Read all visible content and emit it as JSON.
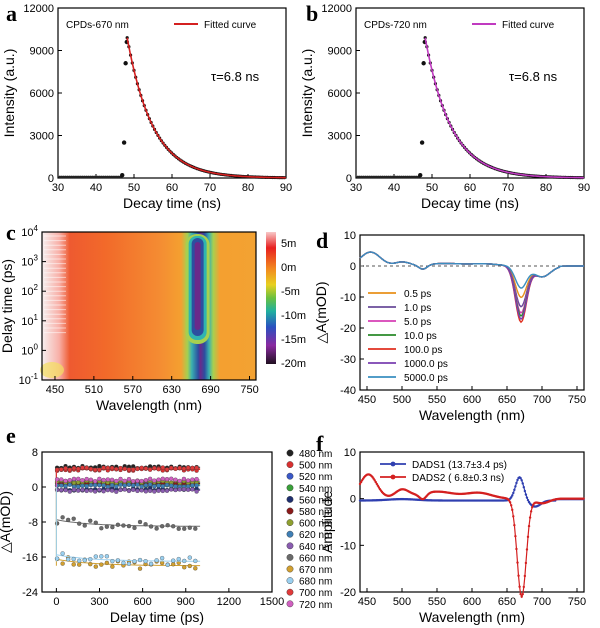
{
  "chart_data": [
    {
      "panel": "a",
      "type": "scatter",
      "annotation": "CPDs-670 nm",
      "tau_label": "τ=6.8 ns",
      "legend": [
        "Fitted curve"
      ],
      "xlabel": "Decay time (ns)",
      "ylabel": "Intensity (a.u.)",
      "xlim": [
        30,
        90
      ],
      "ylim": [
        0,
        12000
      ],
      "xticks": [
        30,
        40,
        50,
        60,
        70,
        80,
        90
      ],
      "yticks": [
        0,
        3000,
        6000,
        9000,
        12000
      ],
      "fit_color": "#d42020",
      "tau": 6.8,
      "t0": 48.2,
      "peak": 9900,
      "rise_points": [
        [
          46.9,
          200
        ],
        [
          47.4,
          2500
        ],
        [
          47.8,
          8100
        ],
        [
          48.1,
          9600
        ]
      ]
    },
    {
      "panel": "b",
      "type": "scatter",
      "annotation": "CPDs-720 nm",
      "tau_label": "τ=6.8 ns",
      "legend": [
        "Fitted curve"
      ],
      "xlabel": "Decay time (ns)",
      "ylabel": "Intensity (a.u.)",
      "xlim": [
        30,
        90
      ],
      "ylim": [
        0,
        12000
      ],
      "xticks": [
        30,
        40,
        50,
        60,
        70,
        80,
        90
      ],
      "yticks": [
        0,
        3000,
        6000,
        9000,
        12000
      ],
      "fit_color": "#c03ac0",
      "tau": 6.8,
      "t0": 48.2,
      "peak": 9900,
      "rise_points": [
        [
          46.9,
          200
        ],
        [
          47.4,
          2500
        ],
        [
          47.8,
          8100
        ],
        [
          48.1,
          9600
        ]
      ]
    },
    {
      "panel": "c",
      "type": "heatmap",
      "xlabel": "Wavelength (nm)",
      "ylabel": "Delay time (ps)",
      "xlim": [
        430,
        760
      ],
      "xticks": [
        450,
        510,
        570,
        630,
        690,
        750
      ],
      "yscale": "log",
      "ylim": [
        0.1,
        10000
      ],
      "yticks": [
        "10^-1",
        "10^0",
        "10^1",
        "10^2",
        "10^3",
        "10^4"
      ],
      "colorbar_ticks": [
        "5m",
        "0m",
        "-5m",
        "-10m",
        "-15m",
        "-20m"
      ],
      "feature_center_nm": 670
    },
    {
      "panel": "d",
      "type": "line",
      "xlabel": "Wavelength (nm)",
      "ylabel": "△A(mOD)",
      "xlim": [
        440,
        760
      ],
      "ylim": [
        -40,
        10
      ],
      "xticks": [
        450,
        500,
        550,
        600,
        650,
        700,
        750
      ],
      "yticks": [
        -40,
        -30,
        -20,
        -10,
        0,
        10
      ],
      "series": [
        {
          "name": "0.5 ps",
          "color": "#e8901a",
          "dip": -10
        },
        {
          "name": "1.0 ps",
          "color": "#6a4c9a",
          "dip": -13
        },
        {
          "name": "5.0 ps",
          "color": "#d63fb4",
          "dip": -15
        },
        {
          "name": "10.0 ps",
          "color": "#2a8a2a",
          "dip": -16
        },
        {
          "name": "100.0 ps",
          "color": "#e03020",
          "dip": -18
        },
        {
          "name": "1000.0 ps",
          "color": "#7a3fb0",
          "dip": -17
        },
        {
          "name": "5000.0 ps",
          "color": "#3a8fc0",
          "dip": -7
        }
      ]
    },
    {
      "panel": "e",
      "type": "scatter",
      "xlabel": "Delay time (ps)",
      "ylabel": "△A(mOD)",
      "xlim": [
        -100,
        1500
      ],
      "ylim": [
        -24,
        8
      ],
      "xticks": [
        0,
        300,
        600,
        900,
        1200,
        1500
      ],
      "yticks": [
        -24,
        -16,
        -8,
        0,
        8
      ],
      "series": [
        {
          "name": "480 nm",
          "color": "#222222",
          "level": 4.5
        },
        {
          "name": "500 nm",
          "color": "#d93030",
          "level": 4.0
        },
        {
          "name": "520 nm",
          "color": "#3a58c8",
          "level": 1.0
        },
        {
          "name": "540 nm",
          "color": "#3aa03a",
          "level": 0.5
        },
        {
          "name": "560 nm",
          "color": "#1f2f6f",
          "level": -0.5
        },
        {
          "name": "580 nm",
          "color": "#8b1a1a",
          "level": 0.8
        },
        {
          "name": "600 nm",
          "color": "#8fa030",
          "level": 1.2
        },
        {
          "name": "620 nm",
          "color": "#3f7fb5",
          "level": 0.3
        },
        {
          "name": "640 nm",
          "color": "#8a5cb0",
          "level": -0.8
        },
        {
          "name": "660 nm",
          "color": "#6a6a6a",
          "level": -9
        },
        {
          "name": "670 nm",
          "color": "#d2a030",
          "level": -18
        },
        {
          "name": "680 nm",
          "color": "#9ad0f0",
          "level": -17
        },
        {
          "name": "700 nm",
          "color": "#e03a3a",
          "level": 4.2
        },
        {
          "name": "720 nm",
          "color": "#d060c0",
          "level": 1.6
        }
      ]
    },
    {
      "panel": "f",
      "type": "line",
      "xlabel": "Wavelength (nm)",
      "ylabel": "Amplitude",
      "xlim": [
        440,
        760
      ],
      "ylim": [
        -20,
        10
      ],
      "xticks": [
        450,
        500,
        550,
        600,
        650,
        700,
        750
      ],
      "yticks": [
        -20,
        -10,
        0,
        10
      ],
      "series": [
        {
          "name": "DADS1 (13.7±3.4 ps)",
          "color": "#2f3fb0"
        },
        {
          "name": "DADS2 ( 6.8±0.3 ns)",
          "color": "#d42020"
        }
      ]
    }
  ]
}
